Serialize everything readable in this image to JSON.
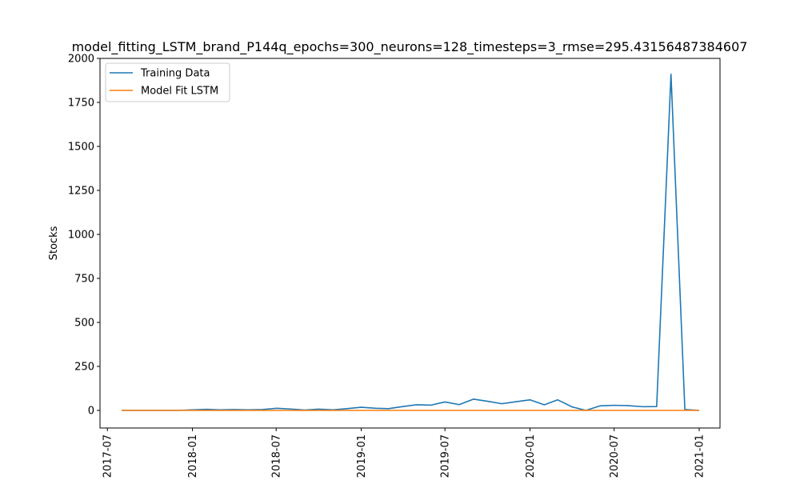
{
  "chart_data": {
    "type": "line",
    "title": "model_fitting_LSTM_brand_P144q_epochs=300_neurons=128_timesteps=3_rmse=295.43156487384607",
    "xlabel": "",
    "ylabel": "Stocks",
    "ylim": [
      -100,
      2000
    ],
    "xlim": [
      "2017-06-15",
      "2021-02-15"
    ],
    "x_ticks": [
      "2017-07",
      "2018-01",
      "2018-07",
      "2019-01",
      "2019-07",
      "2020-01",
      "2020-07",
      "2021-01"
    ],
    "y_ticks": [
      0,
      250,
      500,
      750,
      1000,
      1250,
      1500,
      1750,
      2000
    ],
    "grid": false,
    "legend_position": "top-left",
    "x": [
      "2017-08-01",
      "2017-09-01",
      "2017-10-01",
      "2017-11-01",
      "2017-12-01",
      "2018-01-01",
      "2018-02-01",
      "2018-03-01",
      "2018-04-01",
      "2018-05-01",
      "2018-06-01",
      "2018-07-01",
      "2018-08-01",
      "2018-09-01",
      "2018-10-01",
      "2018-11-01",
      "2018-12-01",
      "2019-01-01",
      "2019-02-01",
      "2019-03-01",
      "2019-04-01",
      "2019-05-01",
      "2019-06-01",
      "2019-07-01",
      "2019-08-01",
      "2019-09-01",
      "2019-10-01",
      "2019-11-01",
      "2019-12-01",
      "2020-01-01",
      "2020-02-01",
      "2020-03-01",
      "2020-04-01",
      "2020-05-01",
      "2020-06-01",
      "2020-07-01",
      "2020-08-01",
      "2020-09-01",
      "2020-10-01",
      "2020-11-01",
      "2020-12-01",
      "2021-01-01"
    ],
    "series": [
      {
        "name": "Training Data",
        "color": "#1f77b4",
        "values": [
          0,
          0,
          0,
          0,
          0,
          3,
          6,
          3,
          5,
          3,
          5,
          12,
          8,
          2,
          7,
          3,
          10,
          18,
          12,
          10,
          22,
          32,
          30,
          48,
          33,
          64,
          52,
          38,
          49,
          60,
          32,
          60,
          20,
          0,
          26,
          29,
          27,
          21,
          22,
          1910,
          5,
          0
        ]
      },
      {
        "name": "Model Fit LSTM",
        "color": "#ff7f0e",
        "values": [
          0,
          0,
          0,
          0,
          0,
          0,
          0,
          0,
          0,
          0,
          0,
          0,
          0,
          0,
          0,
          0,
          0,
          0,
          0,
          0,
          0,
          0,
          0,
          0,
          0,
          0,
          0,
          0,
          0,
          0,
          0,
          0,
          0,
          0,
          0,
          0,
          0,
          0,
          0,
          0,
          0,
          0
        ]
      }
    ]
  }
}
